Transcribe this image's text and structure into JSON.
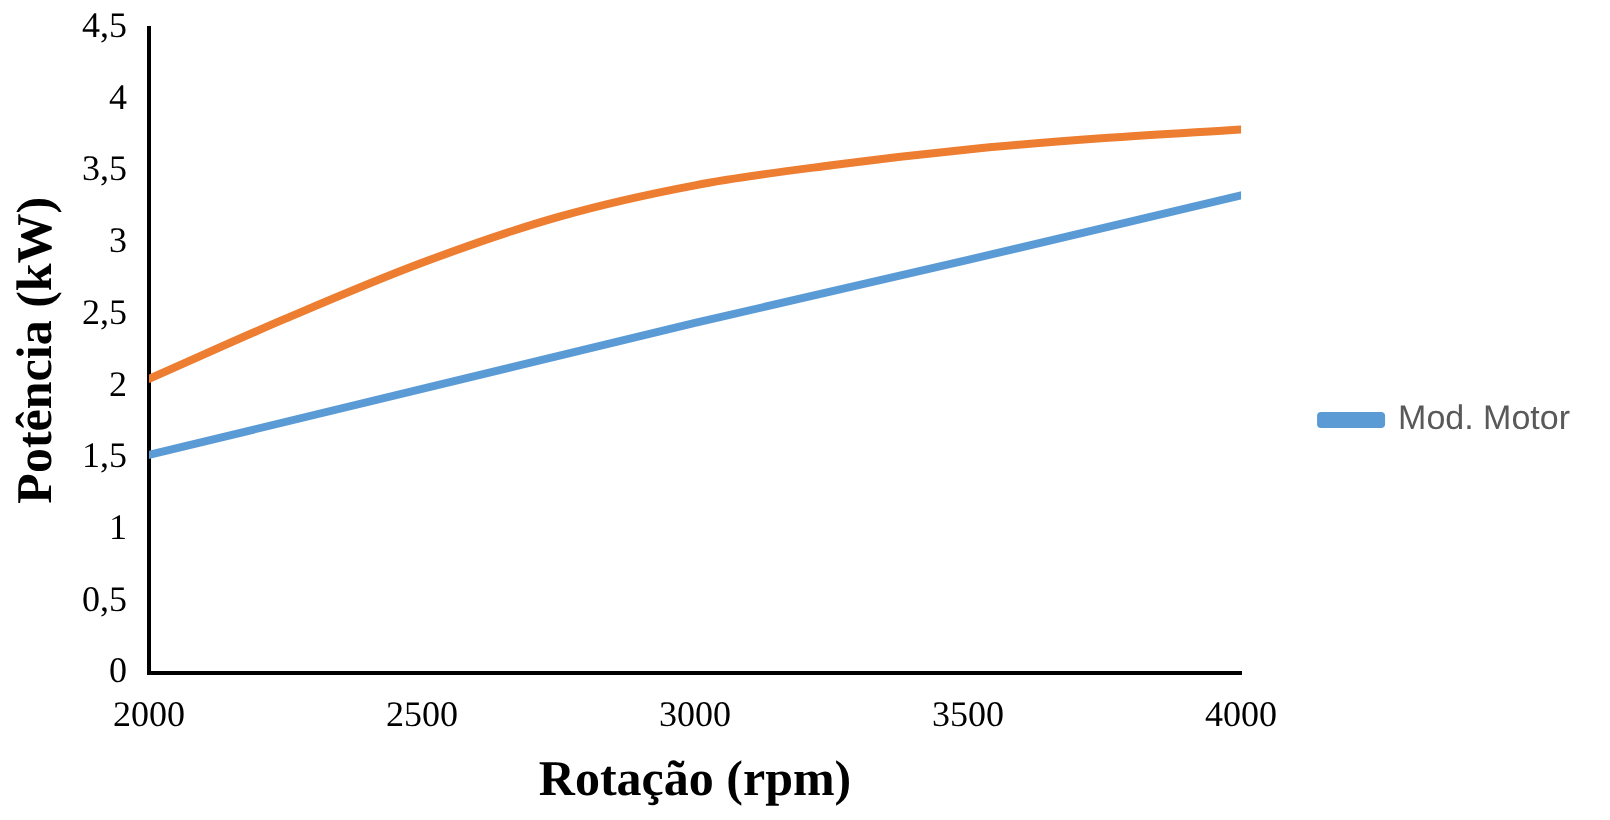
{
  "chart_data": {
    "type": "line",
    "xlabel": "Rotação (rpm)",
    "ylabel": "Potência (kW)",
    "xlim": [
      2000,
      4000
    ],
    "xticks": [
      2000,
      2500,
      3000,
      3500,
      4000
    ],
    "ylim": [
      0,
      4.5
    ],
    "yticks": [
      {
        "value": 0,
        "label": "0"
      },
      {
        "value": 0.5,
        "label": "0,5"
      },
      {
        "value": 1,
        "label": "1"
      },
      {
        "value": 1.5,
        "label": "1,5"
      },
      {
        "value": 2,
        "label": "2"
      },
      {
        "value": 2.5,
        "label": "2,5"
      },
      {
        "value": 3,
        "label": "3"
      },
      {
        "value": 3.5,
        "label": "3,5"
      },
      {
        "value": 4,
        "label": "4"
      },
      {
        "value": 4.5,
        "label": "4,5"
      }
    ],
    "grid": false,
    "legend": "right",
    "marker": "none",
    "line_style": "solid",
    "series": [
      {
        "name": "Mod. Motor",
        "color": "#5b9bd5",
        "x": [
          2000,
          2500,
          3000,
          3500,
          4000
        ],
        "values": [
          1.52,
          1.98,
          2.44,
          2.88,
          3.33
        ]
      },
      {
        "color": "#ed7d31",
        "x": [
          2000,
          2250,
          2500,
          2750,
          3000,
          3250,
          3500,
          3750,
          4000
        ],
        "values": [
          2.05,
          2.47,
          2.86,
          3.18,
          3.4,
          3.54,
          3.65,
          3.73,
          3.79
        ]
      }
    ]
  }
}
